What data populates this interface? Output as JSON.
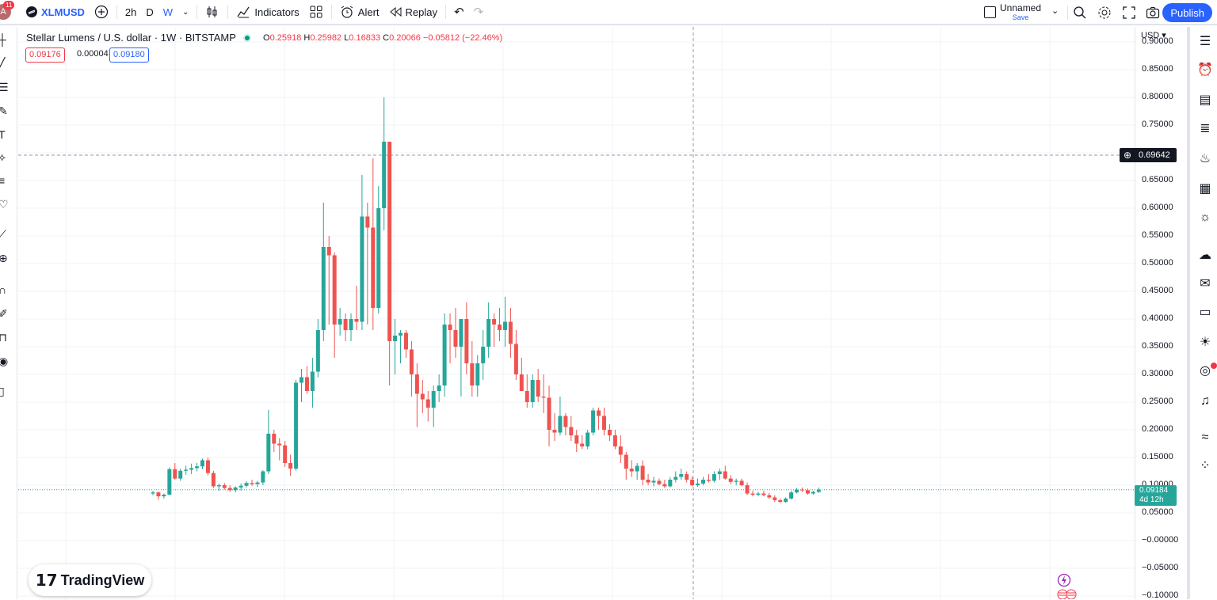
{
  "header": {
    "notification_count": "11",
    "symbol": "XLMUSD",
    "intervals": [
      "2h",
      "D",
      "W"
    ],
    "indicators_label": "Indicators",
    "alert_label": "Alert",
    "replay_label": "Replay",
    "layout_name": "Unnamed",
    "save_label": "Save",
    "publish_label": "Publish"
  },
  "legend": {
    "title": "Stellar Lumens / U.S. dollar · 1W · BITSTAMP",
    "open_label": "O",
    "open": "0.25918",
    "high_label": "H",
    "high": "0.25982",
    "low_label": "L",
    "low": "0.16833",
    "close_label": "C",
    "close": "0.20066",
    "change": "−0.05812 (−22.46%)",
    "bid": "0.09176",
    "spread": "0.00004",
    "ask": "0.09180"
  },
  "price_axis": {
    "currency": "USD",
    "labels": [
      "0.90000",
      "0.85000",
      "0.80000",
      "0.75000",
      "0.70000",
      "0.65000",
      "0.60000",
      "0.55000",
      "0.50000",
      "0.45000",
      "0.40000",
      "0.35000",
      "0.30000",
      "0.25000",
      "0.20000",
      "0.15000",
      "0.10000",
      "0.05000",
      "−0.00000",
      "−0.05000",
      "−0.10000"
    ],
    "crosshair_price": "0.69642",
    "last_price": "0.09184",
    "countdown": "4d 12h"
  },
  "watermark": "TradingView",
  "colors": {
    "up": "#26a69a",
    "down": "#ef5350",
    "accent": "#2962ff"
  },
  "chart_data": {
    "type": "candlestick",
    "title": "Stellar Lumens / U.S. dollar · 1W · BITSTAMP",
    "ylim": [
      -0.1,
      0.9
    ],
    "candles": [
      [
        0.085,
        0.09,
        0.082,
        0.087
      ],
      [
        0.087,
        0.089,
        0.074,
        0.08
      ],
      [
        0.08,
        0.085,
        0.076,
        0.083
      ],
      [
        0.083,
        0.132,
        0.082,
        0.129
      ],
      [
        0.129,
        0.14,
        0.11,
        0.112
      ],
      [
        0.112,
        0.13,
        0.108,
        0.126
      ],
      [
        0.126,
        0.135,
        0.119,
        0.128
      ],
      [
        0.128,
        0.139,
        0.12,
        0.131
      ],
      [
        0.131,
        0.14,
        0.125,
        0.134
      ],
      [
        0.134,
        0.148,
        0.129,
        0.145
      ],
      [
        0.145,
        0.15,
        0.118,
        0.122
      ],
      [
        0.122,
        0.126,
        0.095,
        0.098
      ],
      [
        0.098,
        0.103,
        0.09,
        0.1
      ],
      [
        0.1,
        0.104,
        0.092,
        0.095
      ],
      [
        0.095,
        0.1,
        0.088,
        0.091
      ],
      [
        0.091,
        0.098,
        0.087,
        0.096
      ],
      [
        0.096,
        0.103,
        0.09,
        0.099
      ],
      [
        0.099,
        0.107,
        0.096,
        0.104
      ],
      [
        0.104,
        0.11,
        0.099,
        0.102
      ],
      [
        0.102,
        0.108,
        0.097,
        0.105
      ],
      [
        0.105,
        0.127,
        0.1,
        0.125
      ],
      [
        0.125,
        0.236,
        0.12,
        0.193
      ],
      [
        0.193,
        0.2,
        0.16,
        0.175
      ],
      [
        0.175,
        0.185,
        0.145,
        0.172
      ],
      [
        0.172,
        0.18,
        0.133,
        0.14
      ],
      [
        0.14,
        0.155,
        0.117,
        0.13
      ],
      [
        0.13,
        0.29,
        0.126,
        0.285
      ],
      [
        0.285,
        0.31,
        0.25,
        0.295
      ],
      [
        0.295,
        0.315,
        0.265,
        0.27
      ],
      [
        0.27,
        0.33,
        0.24,
        0.305
      ],
      [
        0.305,
        0.4,
        0.295,
        0.38
      ],
      [
        0.38,
        0.61,
        0.36,
        0.53
      ],
      [
        0.53,
        0.55,
        0.39,
        0.515
      ],
      [
        0.515,
        0.52,
        0.33,
        0.39
      ],
      [
        0.39,
        0.42,
        0.37,
        0.4
      ],
      [
        0.4,
        0.41,
        0.36,
        0.38
      ],
      [
        0.38,
        0.41,
        0.36,
        0.4
      ],
      [
        0.4,
        0.46,
        0.38,
        0.395
      ],
      [
        0.395,
        0.66,
        0.38,
        0.585
      ],
      [
        0.585,
        0.61,
        0.39,
        0.565
      ],
      [
        0.565,
        0.69,
        0.38,
        0.42
      ],
      [
        0.42,
        0.64,
        0.41,
        0.6
      ],
      [
        0.6,
        0.8,
        0.56,
        0.72
      ],
      [
        0.72,
        0.72,
        0.28,
        0.36
      ],
      [
        0.36,
        0.4,
        0.3,
        0.37
      ],
      [
        0.37,
        0.38,
        0.32,
        0.375
      ],
      [
        0.375,
        0.38,
        0.33,
        0.345
      ],
      [
        0.345,
        0.36,
        0.26,
        0.3
      ],
      [
        0.3,
        0.32,
        0.205,
        0.265
      ],
      [
        0.265,
        0.29,
        0.23,
        0.255
      ],
      [
        0.255,
        0.27,
        0.215,
        0.24
      ],
      [
        0.24,
        0.28,
        0.205,
        0.27
      ],
      [
        0.27,
        0.3,
        0.25,
        0.28
      ],
      [
        0.28,
        0.41,
        0.26,
        0.39
      ],
      [
        0.39,
        0.41,
        0.32,
        0.38
      ],
      [
        0.38,
        0.42,
        0.33,
        0.35
      ],
      [
        0.35,
        0.4,
        0.26,
        0.4
      ],
      [
        0.4,
        0.43,
        0.3,
        0.32
      ],
      [
        0.32,
        0.36,
        0.26,
        0.28
      ],
      [
        0.28,
        0.335,
        0.26,
        0.32
      ],
      [
        0.32,
        0.38,
        0.29,
        0.35
      ],
      [
        0.35,
        0.43,
        0.33,
        0.4
      ],
      [
        0.4,
        0.41,
        0.35,
        0.39
      ],
      [
        0.39,
        0.42,
        0.36,
        0.38
      ],
      [
        0.38,
        0.44,
        0.35,
        0.395
      ],
      [
        0.395,
        0.42,
        0.33,
        0.355
      ],
      [
        0.355,
        0.38,
        0.29,
        0.3
      ],
      [
        0.3,
        0.33,
        0.27,
        0.27
      ],
      [
        0.27,
        0.3,
        0.24,
        0.25
      ],
      [
        0.25,
        0.3,
        0.24,
        0.29
      ],
      [
        0.29,
        0.31,
        0.25,
        0.26
      ],
      [
        0.26,
        0.3,
        0.23,
        0.258
      ],
      [
        0.258,
        0.28,
        0.17,
        0.2
      ],
      [
        0.2,
        0.23,
        0.18,
        0.195
      ],
      [
        0.195,
        0.26,
        0.19,
        0.225
      ],
      [
        0.225,
        0.23,
        0.19,
        0.205
      ],
      [
        0.205,
        0.225,
        0.18,
        0.19
      ],
      [
        0.19,
        0.2,
        0.16,
        0.175
      ],
      [
        0.175,
        0.19,
        0.165,
        0.17
      ],
      [
        0.17,
        0.2,
        0.165,
        0.195
      ],
      [
        0.195,
        0.24,
        0.19,
        0.235
      ],
      [
        0.235,
        0.24,
        0.2,
        0.225
      ],
      [
        0.225,
        0.24,
        0.19,
        0.2
      ],
      [
        0.2,
        0.21,
        0.18,
        0.19
      ],
      [
        0.19,
        0.2,
        0.165,
        0.17
      ],
      [
        0.17,
        0.19,
        0.14,
        0.155
      ],
      [
        0.155,
        0.16,
        0.11,
        0.13
      ],
      [
        0.13,
        0.145,
        0.115,
        0.125
      ],
      [
        0.125,
        0.14,
        0.11,
        0.135
      ],
      [
        0.135,
        0.145,
        0.1,
        0.11
      ],
      [
        0.11,
        0.12,
        0.1,
        0.105
      ],
      [
        0.105,
        0.115,
        0.098,
        0.108
      ],
      [
        0.108,
        0.112,
        0.1,
        0.102
      ],
      [
        0.102,
        0.11,
        0.095,
        0.098
      ],
      [
        0.098,
        0.115,
        0.096,
        0.11
      ],
      [
        0.11,
        0.125,
        0.105,
        0.115
      ],
      [
        0.115,
        0.13,
        0.11,
        0.12
      ],
      [
        0.12,
        0.125,
        0.105,
        0.11
      ],
      [
        0.11,
        0.115,
        0.098,
        0.1
      ],
      [
        0.1,
        0.112,
        0.097,
        0.103
      ],
      [
        0.103,
        0.115,
        0.1,
        0.11
      ],
      [
        0.11,
        0.12,
        0.105,
        0.108
      ],
      [
        0.108,
        0.125,
        0.105,
        0.12
      ],
      [
        0.12,
        0.13,
        0.11,
        0.125
      ],
      [
        0.125,
        0.135,
        0.11,
        0.112
      ],
      [
        0.112,
        0.118,
        0.102,
        0.106
      ],
      [
        0.106,
        0.112,
        0.1,
        0.108
      ],
      [
        0.108,
        0.112,
        0.098,
        0.1
      ],
      [
        0.1,
        0.105,
        0.082,
        0.085
      ],
      [
        0.085,
        0.09,
        0.08,
        0.083
      ],
      [
        0.083,
        0.088,
        0.08,
        0.085
      ],
      [
        0.085,
        0.09,
        0.08,
        0.082
      ],
      [
        0.082,
        0.086,
        0.075,
        0.078
      ],
      [
        0.078,
        0.082,
        0.07,
        0.073
      ],
      [
        0.073,
        0.076,
        0.068,
        0.07
      ],
      [
        0.07,
        0.078,
        0.068,
        0.076
      ],
      [
        0.076,
        0.09,
        0.074,
        0.087
      ],
      [
        0.087,
        0.095,
        0.085,
        0.092
      ],
      [
        0.092,
        0.096,
        0.088,
        0.091
      ],
      [
        0.091,
        0.094,
        0.083,
        0.085
      ],
      [
        0.085,
        0.09,
        0.083,
        0.088
      ],
      [
        0.088,
        0.096,
        0.086,
        0.092
      ]
    ]
  }
}
